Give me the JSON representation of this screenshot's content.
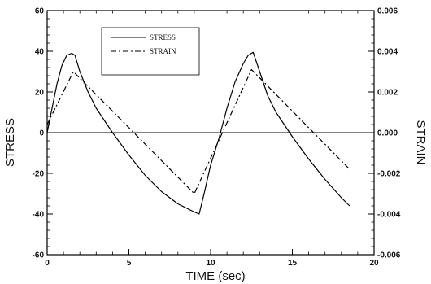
{
  "chart_data": {
    "type": "line",
    "xlabel": "TIME (sec)",
    "ylabel": "STRESS",
    "y2label": "STRAIN",
    "xlim": [
      0,
      20
    ],
    "ylim": [
      -60,
      60
    ],
    "y2lim": [
      -0.006,
      0.006
    ],
    "x_ticks": [
      0,
      5,
      10,
      15,
      20
    ],
    "y_ticks": [
      -60,
      -40,
      -20,
      0,
      20,
      40,
      60
    ],
    "y2_ticks": [
      "-0.006",
      "-0.004",
      "-0.002",
      "0.000",
      "0.002",
      "0.004",
      "0.006"
    ],
    "grid": false,
    "legend_position": "top-center",
    "series": [
      {
        "name": "STRESS",
        "axis": "left",
        "style": "solid",
        "x": [
          0,
          0.3,
          0.6,
          0.9,
          1.2,
          1.5,
          1.7,
          2.0,
          2.5,
          3,
          4,
          5,
          6,
          7,
          8,
          9,
          9.3,
          9.6,
          10,
          10.5,
          11,
          11.5,
          12,
          12.3,
          12.6,
          13,
          13.5,
          14,
          15,
          16,
          17,
          18,
          18.5
        ],
        "y": [
          0,
          12,
          24,
          33,
          38,
          39,
          38,
          30,
          20,
          12,
          0,
          -11,
          -21,
          -29,
          -35,
          -39,
          -40,
          -30,
          -16,
          -3,
          12,
          25,
          34,
          38,
          39.5,
          30,
          18,
          10,
          -2,
          -13,
          -23,
          -32,
          -36
        ]
      },
      {
        "name": "STRAIN",
        "axis": "right",
        "style": "dashdot",
        "x": [
          0,
          1.6,
          9,
          12.5,
          18.5
        ],
        "y": [
          0.0004,
          0.003,
          -0.003,
          0.0031,
          -0.0018
        ]
      }
    ]
  }
}
